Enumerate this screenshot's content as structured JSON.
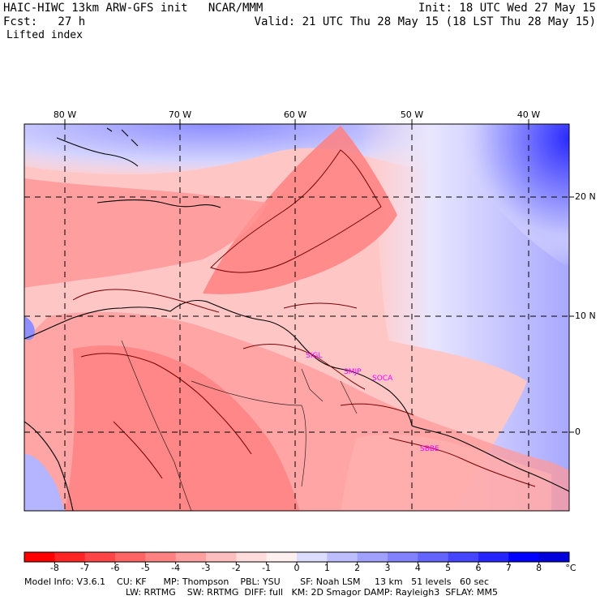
{
  "header": {
    "model_line": "HAIC-HIWC 13km ARW-GFS init   NCAR/MMM",
    "forecast_line": "Fcst:   27 h",
    "field_name": "Lifted index",
    "init_line": "Init: 18 UTC Wed 27 May 15",
    "valid_line": "Valid: 21 UTC Thu 28 May 15 (18 LST Thu 28 May 15)"
  },
  "map": {
    "lon_labels": [
      "80 W",
      "70 W",
      "60 W",
      "50 W",
      "40 W"
    ],
    "lat_labels": [
      "20 N",
      "10 N",
      "0"
    ],
    "stations": [
      "SIGL",
      "SMJP",
      "SOCA",
      "SBBE"
    ],
    "station_color": "#ff00ff",
    "contour_color": "#7a0000"
  },
  "colorbar": {
    "unit": "°C",
    "labels": [
      "-8",
      "-7",
      "-6",
      "-5",
      "-4",
      "-3",
      "-2",
      "-1",
      "0",
      "1",
      "2",
      "3",
      "4",
      "5",
      "6",
      "7",
      "8"
    ],
    "colors": [
      "#ff0000",
      "#ff2525",
      "#ff4545",
      "#ff6464",
      "#ff8282",
      "#ffa0a0",
      "#ffbebe",
      "#ffdcdc",
      "#fff0f0",
      "#dcdcff",
      "#bebeff",
      "#a0a0ff",
      "#8282ff",
      "#6464ff",
      "#4545ff",
      "#2525ff",
      "#0000ff",
      "#0000dd"
    ]
  },
  "footer": {
    "line1": "Model Info: V3.6.1    CU: KF      MP: Thompson    PBL: YSU       SF: Noah LSM     13 km   51 levels   60 sec",
    "line2": "LW: RRTMG    SW: RRTMG  DIFF: full   KM: 2D Smagor DAMP: Rayleigh3  SFLAY: MM5"
  }
}
